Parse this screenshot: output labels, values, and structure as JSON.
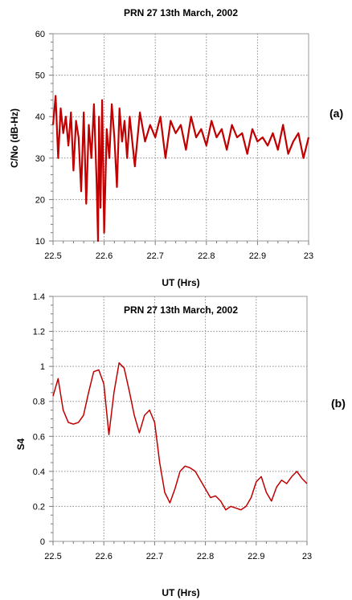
{
  "chart_data": [
    {
      "type": "line",
      "panel": "(a)",
      "title": "PRN 27  13th March, 2002",
      "xlabel": "UT (Hrs)",
      "ylabel": "C/No (dB-Hz)",
      "xlim": [
        22.5,
        23
      ],
      "ylim": [
        10,
        60
      ],
      "xticks": [
        "22.5",
        "22.6",
        "22.7",
        "22.8",
        "22.9",
        "23"
      ],
      "yticks": [
        "10",
        "20",
        "30",
        "40",
        "50",
        "60"
      ],
      "grid": true,
      "series": [
        {
          "color": "#c00000",
          "x": [
            22.5,
            22.505,
            22.51,
            22.515,
            22.52,
            22.525,
            22.53,
            22.535,
            22.54,
            22.545,
            22.55,
            22.555,
            22.56,
            22.565,
            22.57,
            22.575,
            22.58,
            22.585,
            22.588,
            22.59,
            22.593,
            22.596,
            22.6,
            22.605,
            22.61,
            22.615,
            22.62,
            22.625,
            22.63,
            22.635,
            22.64,
            22.645,
            22.65,
            22.66,
            22.67,
            22.68,
            22.69,
            22.7,
            22.71,
            22.72,
            22.73,
            22.74,
            22.75,
            22.76,
            22.77,
            22.78,
            22.79,
            22.8,
            22.81,
            22.82,
            22.83,
            22.84,
            22.85,
            22.86,
            22.87,
            22.88,
            22.89,
            22.9,
            22.91,
            22.92,
            22.93,
            22.94,
            22.95,
            22.96,
            22.97,
            22.98,
            22.99,
            23.0
          ],
          "y": [
            38,
            45,
            30,
            42,
            36,
            40,
            33,
            41,
            27,
            39,
            35,
            22,
            41,
            19,
            38,
            30,
            43,
            25,
            10,
            40,
            18,
            44,
            12,
            37,
            30,
            43,
            35,
            23,
            42,
            34,
            39,
            30,
            40,
            28,
            41,
            34,
            38,
            35,
            40,
            30,
            39,
            36,
            38,
            32,
            40,
            35,
            37,
            33,
            39,
            35,
            37,
            32,
            38,
            35,
            36,
            31,
            37,
            34,
            35,
            33,
            36,
            32,
            38,
            31,
            34,
            36,
            30,
            35
          ]
        }
      ]
    },
    {
      "type": "line",
      "panel": "(b)",
      "title": "PRN 27  13th March, 2002",
      "xlabel": "UT (Hrs)",
      "ylabel": "S4",
      "xlim": [
        22.5,
        23
      ],
      "ylim": [
        0,
        1.4
      ],
      "xticks": [
        "22.5",
        "22.6",
        "22.7",
        "22.8",
        "22.9",
        "23"
      ],
      "yticks": [
        "0",
        "0.2",
        "0.4",
        "0.6",
        "0.8",
        "1",
        "1.2",
        "1.4"
      ],
      "grid": true,
      "series": [
        {
          "color": "#c00000",
          "x": [
            22.5,
            22.51,
            22.52,
            22.53,
            22.54,
            22.55,
            22.56,
            22.57,
            22.58,
            22.59,
            22.6,
            22.61,
            22.62,
            22.63,
            22.64,
            22.65,
            22.66,
            22.67,
            22.68,
            22.69,
            22.7,
            22.71,
            22.72,
            22.73,
            22.74,
            22.75,
            22.76,
            22.77,
            22.78,
            22.79,
            22.8,
            22.81,
            22.82,
            22.83,
            22.84,
            22.85,
            22.86,
            22.87,
            22.88,
            22.89,
            22.9,
            22.91,
            22.92,
            22.93,
            22.94,
            22.95,
            22.96,
            22.97,
            22.98,
            22.99,
            23.0
          ],
          "y": [
            0.83,
            0.93,
            0.75,
            0.68,
            0.67,
            0.68,
            0.72,
            0.85,
            0.97,
            0.98,
            0.9,
            0.61,
            0.85,
            1.02,
            0.99,
            0.86,
            0.72,
            0.62,
            0.72,
            0.75,
            0.68,
            0.45,
            0.28,
            0.22,
            0.3,
            0.4,
            0.43,
            0.42,
            0.4,
            0.35,
            0.3,
            0.25,
            0.26,
            0.23,
            0.18,
            0.2,
            0.19,
            0.18,
            0.2,
            0.25,
            0.34,
            0.37,
            0.28,
            0.23,
            0.31,
            0.35,
            0.33,
            0.37,
            0.4,
            0.36,
            0.33
          ]
        }
      ]
    }
  ]
}
